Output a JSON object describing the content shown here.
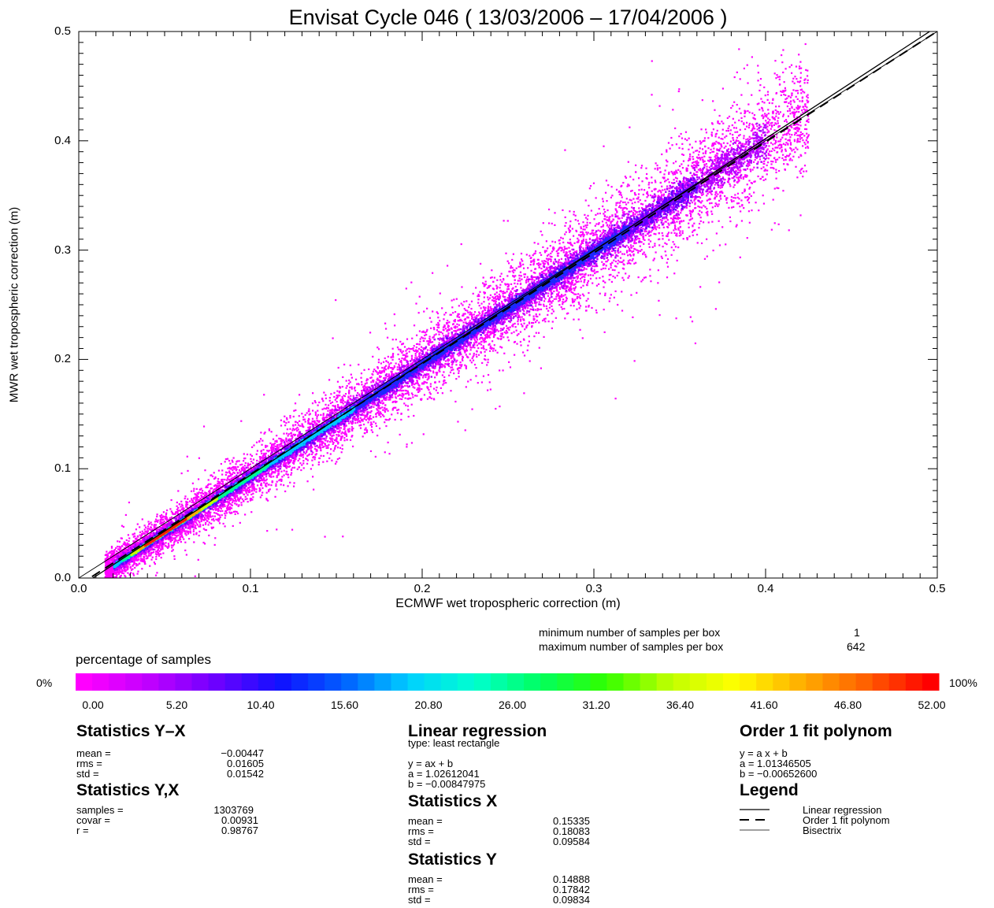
{
  "chart_data": {
    "type": "heatmap",
    "title": "Envisat Cycle 046 ( 13/03/2006 – 17/04/2006 )",
    "xlabel": "ECMWF wet tropospheric correction (m)",
    "ylabel": "MWR wet tropospheric correction (m)",
    "xlim": [
      0.0,
      0.5
    ],
    "ylim": [
      0.0,
      0.5
    ],
    "x_ticks": [
      "0.0",
      "0.1",
      "0.2",
      "0.3",
      "0.4",
      "0.5"
    ],
    "y_ticks": [
      "0.0",
      "0.1",
      "0.2",
      "0.3",
      "0.4",
      "0.5"
    ],
    "grid": false,
    "lines": [
      {
        "name": "Linear regression",
        "a": 1.02612041,
        "b": -0.00847975,
        "style": "solid"
      },
      {
        "name": "Order 1 fit polynom",
        "a": 1.01346505,
        "b": -0.006526,
        "style": "dashed"
      },
      {
        "name": "Bisectrix",
        "a": 1.0,
        "b": 0.0,
        "style": "thin"
      }
    ],
    "density_ridge": [
      [
        0.02,
        0.012
      ],
      [
        0.05,
        0.038
      ],
      [
        0.1,
        0.092
      ],
      [
        0.2,
        0.195
      ],
      [
        0.3,
        0.298
      ],
      [
        0.38,
        0.38
      ],
      [
        0.41,
        0.41
      ]
    ],
    "samples_info": {
      "min_label": "minimum number of samples per box",
      "min_value": "1",
      "max_label": "maximum number of samples per box",
      "max_value": "642"
    },
    "colorbar": {
      "label": "percentage of samples",
      "left_end": "0%",
      "right_end": "100%",
      "ticks": [
        "0.00",
        "5.20",
        "10.40",
        "15.60",
        "20.80",
        "26.00",
        "31.20",
        "36.40",
        "41.60",
        "46.80",
        "52.00"
      ],
      "colors": [
        "#ff00ff",
        "#c000ff",
        "#7000ff",
        "#1010ff",
        "#0060ff",
        "#00d0ff",
        "#00ffd0",
        "#00ff60",
        "#30ff00",
        "#c0ff00",
        "#ffff00",
        "#ffb000",
        "#ff6000",
        "#ff0000"
      ]
    }
  },
  "stats_yx": {
    "heading": "Statistics Y–X",
    "rows": [
      {
        "label": "mean =",
        "value": "−0.00447"
      },
      {
        "label": "rms =",
        "value": "0.01605"
      },
      {
        "label": "std =",
        "value": "0.01542"
      }
    ]
  },
  "stats_y_x": {
    "heading": "Statistics Y,X",
    "rows": [
      {
        "label": "samples =",
        "value": "1303769"
      },
      {
        "label": "covar =",
        "value": "0.00931"
      },
      {
        "label": "r =",
        "value": "0.98767"
      }
    ]
  },
  "linreg": {
    "heading": "Linear regression",
    "type": "type: least rectangle",
    "eq": "y = ax + b",
    "a": "a =  1.02612041",
    "b": "b = −0.00847975"
  },
  "stats_x": {
    "heading": "Statistics X",
    "rows": [
      {
        "label": "mean =",
        "value": "0.15335"
      },
      {
        "label": "rms =",
        "value": "0.18083"
      },
      {
        "label": "std =",
        "value": "0.09584"
      }
    ]
  },
  "stats_y": {
    "heading": "Statistics Y",
    "rows": [
      {
        "label": "mean =",
        "value": "0.14888"
      },
      {
        "label": "rms =",
        "value": "0.17842"
      },
      {
        "label": "std =",
        "value": "0.09834"
      }
    ]
  },
  "poly": {
    "heading": "Order 1 fit polynom",
    "eq": "y = a x + b",
    "a": "a =  1.01346505",
    "b": "b = −0.00652600"
  },
  "legend": {
    "heading": "Legend",
    "items": [
      "Linear regression",
      "Order 1 fit polynom",
      "Bisectrix"
    ]
  }
}
